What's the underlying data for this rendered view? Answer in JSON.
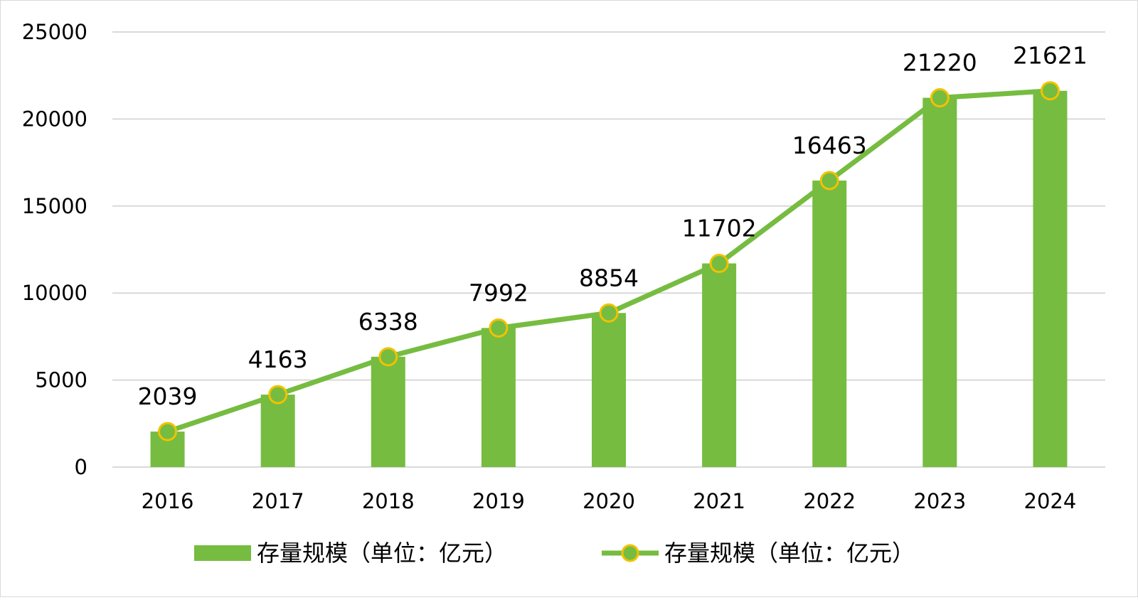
{
  "chart_data": {
    "type": "bar",
    "combo": "bar+line",
    "categories": [
      "2016",
      "2017",
      "2018",
      "2019",
      "2020",
      "2021",
      "2022",
      "2023",
      "2024"
    ],
    "series": [
      {
        "name": "存量规模（单位：亿元）",
        "type": "bar",
        "values": [
          2039,
          4163,
          6338,
          7992,
          8854,
          11702,
          16463,
          21220,
          21621
        ]
      },
      {
        "name": "存量规模（单位：亿元）",
        "type": "line",
        "values": [
          2039,
          4163,
          6338,
          7992,
          8854,
          11702,
          16463,
          21220,
          21621
        ]
      }
    ],
    "data_labels": [
      "2039",
      "4163",
      "6338",
      "7992",
      "8854",
      "11702",
      "16463",
      "21220",
      "21621"
    ],
    "title": "",
    "xlabel": "",
    "ylabel": "",
    "ylim": [
      0,
      25000
    ],
    "yticks": [
      "0",
      "5000",
      "10000",
      "15000",
      "20000",
      "25000"
    ],
    "grid": true,
    "legend_position": "bottom"
  },
  "colors": {
    "bar": "#76bc41",
    "line": "#76bc41",
    "marker_fill": "#76bc41",
    "marker_border": "#f2c200",
    "grid": "#d9d9d9",
    "text": "#000000"
  }
}
